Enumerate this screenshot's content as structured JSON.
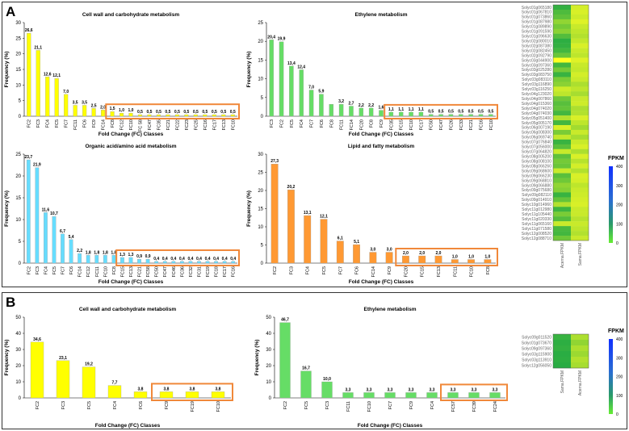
{
  "panels": [
    {
      "label": "A"
    },
    {
      "label": "B"
    }
  ],
  "colors": {
    "yellow": "#ffff00",
    "green": "#66dd66",
    "cyan": "#66ddff",
    "orange": "#ff9933",
    "highlight_box": "#f0883a"
  },
  "chart_data": [
    {
      "id": "A1",
      "type": "bar",
      "title": "Cell wall and carbohydrate metabolism",
      "xlabel": "Fold Change (FC) Classes",
      "ylabel": "Frequency (%)",
      "ylim": [
        0,
        30
      ],
      "yticks": [
        0,
        5,
        10,
        15,
        20,
        25,
        30
      ],
      "color": "#ffff00",
      "categories": [
        "FC2",
        "FC3",
        "FC4",
        "FC5",
        "FC7",
        "FC11",
        "FC6",
        "FC9",
        "FC14",
        "FC8",
        "FC12",
        "FC10",
        "FC 58",
        "FC47",
        "FC35",
        "FC21",
        "FC22",
        "FC23",
        "FC25",
        "FC16",
        "FC17",
        "FC13",
        "FC10"
      ],
      "values": [
        26.6,
        21.1,
        12.6,
        12.1,
        7.0,
        3.5,
        3.5,
        2.5,
        2.0,
        1.5,
        1.0,
        1.0,
        0.5,
        0.5,
        0.5,
        0.5,
        0.5,
        0.5,
        0.5,
        0.5,
        0.5,
        0.5,
        0.5
      ],
      "labels": [
        "26,6",
        "21,1",
        "12,6",
        "12,1",
        "7,0",
        "3,5",
        "3,5",
        "2,5",
        "2,0",
        "1,5",
        "1,0",
        "1,0",
        "0,5",
        "0,5",
        "0,5",
        "0,5",
        "0,5",
        "0,5",
        "0,5",
        "0,5",
        "0,5",
        "0,5",
        "0,5"
      ],
      "highlight_from": 9
    },
    {
      "id": "A2",
      "type": "bar",
      "title": "Ethylene metabolism",
      "xlabel": "Fold Change (FC) Classes",
      "ylabel": "Frequency (%)",
      "ylim": [
        0,
        25
      ],
      "yticks": [
        0,
        5,
        10,
        15,
        20,
        25
      ],
      "color": "#66dd66",
      "categories": [
        "FC3",
        "FC2",
        "FC5",
        "FC4",
        "FC7",
        "FC6",
        "FC8",
        "FC11",
        "FC14",
        "FC20",
        "FC8",
        "FC9",
        "FC35",
        "FC15",
        "FC10",
        "FC17",
        "FC50",
        "FC47",
        "FC26",
        "FC33",
        "FC21",
        "FC16",
        "FC10"
      ],
      "values": [
        20.4,
        19.9,
        13.4,
        12.4,
        7.0,
        5.9,
        3.2,
        3.2,
        2.7,
        2.2,
        2.2,
        1.6,
        1.1,
        1.1,
        1.1,
        1.1,
        0.5,
        0.5,
        0.5,
        0.5,
        0.5,
        0.5,
        0.5
      ],
      "labels": [
        "20,4",
        "19,9",
        "13,4",
        "12,4",
        "7,0",
        "5,9",
        "",
        "3,2",
        "2,7",
        "2,2",
        "2,2",
        "1,6",
        "1,1",
        "1,1",
        "1,1",
        "1,1",
        "0,5",
        "0,5",
        "0,5",
        "0,5",
        "0,5",
        "0,5",
        "0,5"
      ],
      "highlight_from": 12
    },
    {
      "id": "A3",
      "type": "bar",
      "title": "Organic acid/amino acid metabolism",
      "xlabel": "Fold Change (FC) Classes",
      "ylabel": "Frequency (%)",
      "ylim": [
        0,
        25
      ],
      "yticks": [
        0,
        5,
        10,
        15,
        20,
        25
      ],
      "color": "#66ddff",
      "categories": [
        "FC2",
        "FC3",
        "FC4",
        "FC5",
        "FC7",
        "FC6",
        "FC14",
        "FC12",
        "FC11",
        "FC10",
        "FC8",
        "FC15",
        "FC13",
        "FC21",
        "FC58",
        "FC50",
        "FC47",
        "FC46",
        "FC36",
        "FC32",
        "FC31",
        "FC19",
        "FC18",
        "FC17",
        "FC16"
      ],
      "values": [
        23.7,
        21.9,
        11.6,
        10.7,
        6.7,
        5.4,
        2.2,
        1.8,
        1.8,
        1.8,
        1.8,
        1.3,
        1.3,
        0.9,
        0.9,
        0.4,
        0.4,
        0.4,
        0.4,
        0.4,
        0.4,
        0.4,
        0.4,
        0.4,
        0.4
      ],
      "labels": [
        "23,7",
        "21,9",
        "11,6",
        "10,7",
        "6,7",
        "5,4",
        "2,2",
        "1,8",
        "1,8",
        "1,8",
        "1,8",
        "1,3",
        "1,3",
        "0,9",
        "0,9",
        "0,4",
        "0,4",
        "0,4",
        "0,4",
        "0,4",
        "0,4",
        "0,4",
        "0,4",
        "0,4",
        "0,4"
      ],
      "highlight_from": 11
    },
    {
      "id": "A4",
      "type": "bar",
      "title": "Lipid and fatty metabolism",
      "xlabel": "Fold Change (FC) Classes",
      "ylabel": "Frequency (%)",
      "ylim": [
        0,
        30
      ],
      "yticks": [
        0,
        5,
        10,
        15,
        20,
        25,
        30
      ],
      "color": "#ff9933",
      "categories": [
        "FC2",
        "FC3",
        "FC4",
        "FC5",
        "FC7",
        "FC6",
        "FC14",
        "FC9",
        "FC20",
        "FC15",
        "FC13",
        "FC11",
        "FC10",
        "FC8"
      ],
      "values": [
        27.3,
        20.2,
        13.1,
        12.1,
        6.1,
        5.1,
        3.0,
        3.0,
        2.0,
        2.0,
        2.0,
        1.0,
        1.0,
        1.0
      ],
      "labels": [
        "27,3",
        "20,2",
        "13,1",
        "12,1",
        "6,1",
        "5,1",
        "3,0",
        "3,0",
        "2,0",
        "2,0",
        "2,0",
        "1,0",
        "1,0",
        "1,0"
      ],
      "highlight_from": 8
    },
    {
      "id": "B1",
      "type": "bar",
      "title": "Cell wall and carbohydrate metabolism",
      "xlabel": "Fold Change (FC) Classes",
      "ylabel": "Frequency (%)",
      "ylim": [
        0,
        50
      ],
      "yticks": [
        0,
        10,
        20,
        30,
        40,
        50
      ],
      "color": "#ffff00",
      "categories": [
        "FC2",
        "FC3",
        "FC5",
        "FC4",
        "FC6",
        "FC9",
        "FC19",
        "FC10"
      ],
      "values": [
        34.6,
        23.1,
        19.2,
        7.7,
        3.8,
        3.8,
        3.8,
        3.8
      ],
      "labels": [
        "34,6",
        "23,1",
        "19,2",
        "7,7",
        "3,8",
        "3,8",
        "3,8",
        "3,8"
      ],
      "highlight_from": 5
    },
    {
      "id": "B2",
      "type": "bar",
      "title": "Ethylene metabolism",
      "xlabel": "Fold Change (FC) Classes",
      "ylabel": "Frequency (%)",
      "ylim": [
        0,
        50
      ],
      "yticks": [
        0,
        10,
        20,
        30,
        40,
        50
      ],
      "color": "#66dd66",
      "categories": [
        "FC2",
        "FC5",
        "FC3",
        "FC11",
        "FC10",
        "FC7",
        "FC9",
        "FC4",
        "FC57",
        "FC39",
        "FC24"
      ],
      "values": [
        46.7,
        16.7,
        10.0,
        3.3,
        3.3,
        3.3,
        3.3,
        3.3,
        3.3,
        3.3,
        3.3
      ],
      "labels": [
        "46,7",
        "16,7",
        "10,0",
        "3,3",
        "3,3",
        "3,3",
        "3,3",
        "3,3",
        "3,3",
        "3,3",
        "3,3"
      ],
      "highlight_from": 8
    },
    {
      "id": "HA",
      "type": "heatmap",
      "title": "FPKM",
      "colorbar_ticks": [
        "400",
        "300",
        "200",
        "100",
        "0"
      ],
      "columns": [
        "Acerna.FPKM",
        "Sama.FPKM"
      ],
      "rows": [
        "Solyc01g065180",
        "Solyc01g067810",
        "Solyc01g073860",
        "Solyc01g087980",
        "Solyc01g089890",
        "Solyc01g091590",
        "Solyc01g096630",
        "Solyc02g080010",
        "Solyc02g087380",
        "Solyc02g082450",
        "Solyc02g092790",
        "Solyc03g044900",
        "Solyc03g097360",
        "Solyc03g025280",
        "Solyc03g083750",
        "Solyc03g083110",
        "Solyc03g116890",
        "Solyc03g116250",
        "Solyc04g123020",
        "Solyc04g007860",
        "Solyc04g015360",
        "Solyc04g074020",
        "Solyc04g074030",
        "Solyc05g051400",
        "Solyc05g005170",
        "Solyc06g007190",
        "Solyc06g008300",
        "Solyc06g069740",
        "Solyc07g076840",
        "Solyc07g056000",
        "Solyc07g064820",
        "Solyc08g005200",
        "Solyc08g008100",
        "Solyc08g066260",
        "Solyc09g068600",
        "Solyc09g066230",
        "Solyc09g068810",
        "Solyc09g066880",
        "Solyc09g075680",
        "Solyc09g082110",
        "Solyc09g014910",
        "Solyc10g014960",
        "Solyc11g012980",
        "Solyc11g105440",
        "Solyc11g020330",
        "Solyc11g065160",
        "Solyc11g071580",
        "Solyc12g008520",
        "Solyc12g088710"
      ],
      "cells": [
        [
          30,
          320
        ],
        [
          80,
          330
        ],
        [
          110,
          310
        ],
        [
          200,
          340
        ],
        [
          150,
          300
        ],
        [
          190,
          280
        ],
        [
          90,
          260
        ],
        [
          20,
          290
        ],
        [
          30,
          330
        ],
        [
          60,
          300
        ],
        [
          130,
          280
        ],
        [
          400,
          340
        ],
        [
          60,
          300
        ],
        [
          150,
          290
        ],
        [
          40,
          320
        ],
        [
          160,
          300
        ],
        [
          190,
          250
        ],
        [
          310,
          280
        ],
        [
          280,
          240
        ],
        [
          140,
          300
        ],
        [
          100,
          310
        ],
        [
          120,
          250
        ],
        [
          60,
          260
        ],
        [
          260,
          330
        ],
        [
          60,
          280
        ],
        [
          330,
          230
        ],
        [
          160,
          300
        ],
        [
          290,
          240
        ],
        [
          40,
          300
        ],
        [
          100,
          330
        ],
        [
          300,
          250
        ],
        [
          110,
          330
        ],
        [
          150,
          270
        ],
        [
          130,
          320
        ],
        [
          300,
          260
        ],
        [
          100,
          330
        ],
        [
          140,
          320
        ],
        [
          200,
          280
        ],
        [
          180,
          300
        ],
        [
          40,
          310
        ],
        [
          120,
          320
        ],
        [
          260,
          330
        ],
        [
          50,
          300
        ],
        [
          160,
          300
        ],
        [
          90,
          270
        ],
        [
          300,
          300
        ],
        [
          70,
          280
        ],
        [
          60,
          260
        ],
        [
          140,
          300
        ]
      ]
    },
    {
      "id": "HB",
      "type": "heatmap",
      "title": "FPKM",
      "colorbar_ticks": [
        "400",
        "300",
        "200",
        "100",
        "0"
      ],
      "columns": [
        "Sama.FPKM",
        "Acerna.FPKM"
      ],
      "rows": [
        "Solyc09g011520",
        "Solyc01g073670",
        "Solyc09g097360",
        "Solyc03g115900",
        "Solyc03g113910",
        "Solyc12g056050"
      ],
      "cells": [
        [
          40,
          250
        ],
        [
          20,
          200
        ],
        [
          30,
          250
        ],
        [
          15,
          220
        ],
        [
          20,
          260
        ],
        [
          10,
          240
        ]
      ]
    }
  ]
}
